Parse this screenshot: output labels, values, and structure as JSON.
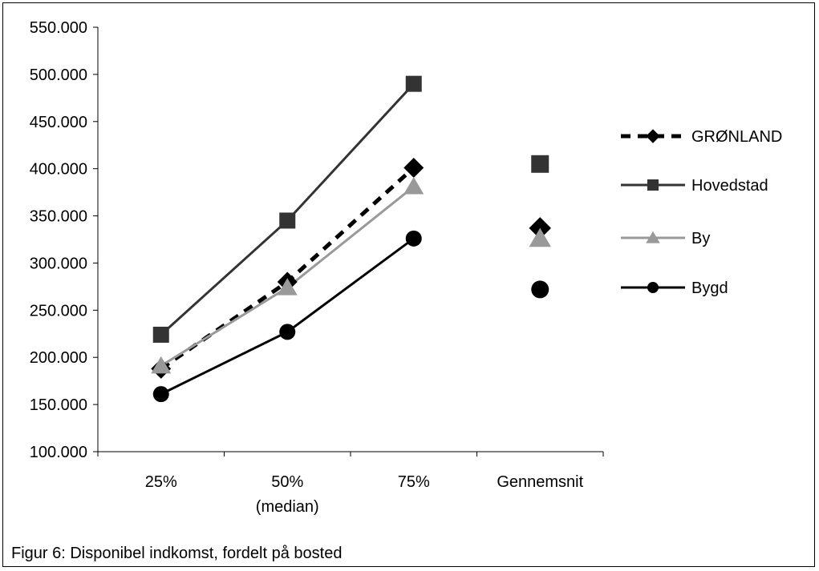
{
  "caption": "Figur 6: Disponibel indkomst, fordelt på bosted",
  "chart_data": {
    "type": "line",
    "categories": [
      "25%",
      "50%\n(median)",
      "75%",
      "Gennemsnit"
    ],
    "ylim": [
      100000,
      550000
    ],
    "yticks": [
      100000,
      150000,
      200000,
      250000,
      300000,
      350000,
      400000,
      450000,
      500000,
      550000
    ],
    "ytick_labels": [
      "100.000",
      "150.000",
      "200.000",
      "250.000",
      "300.000",
      "350.000",
      "400.000",
      "450.000",
      "500.000",
      "550.000"
    ],
    "grid": false,
    "legend_position": "right",
    "series": [
      {
        "name": "GRØNLAND",
        "values": [
          188000,
          280000,
          401000,
          337000
        ],
        "connected_points": 3,
        "marker": "diamond",
        "line_style": "dashed",
        "color": "#000000",
        "marker_color": "#000000"
      },
      {
        "name": "Hovedstad",
        "values": [
          224000,
          345000,
          490000,
          405000
        ],
        "connected_points": 3,
        "marker": "square",
        "line_style": "solid",
        "color": "#333333",
        "marker_color": "#333333"
      },
      {
        "name": "By",
        "values": [
          191000,
          274000,
          381000,
          326000
        ],
        "connected_points": 3,
        "marker": "triangle",
        "line_style": "solid",
        "color": "#999999",
        "marker_color": "#999999"
      },
      {
        "name": "Bygd",
        "values": [
          161000,
          227000,
          326000,
          272000
        ],
        "connected_points": 3,
        "marker": "circle",
        "line_style": "solid",
        "color": "#000000",
        "marker_color": "#000000"
      }
    ]
  }
}
